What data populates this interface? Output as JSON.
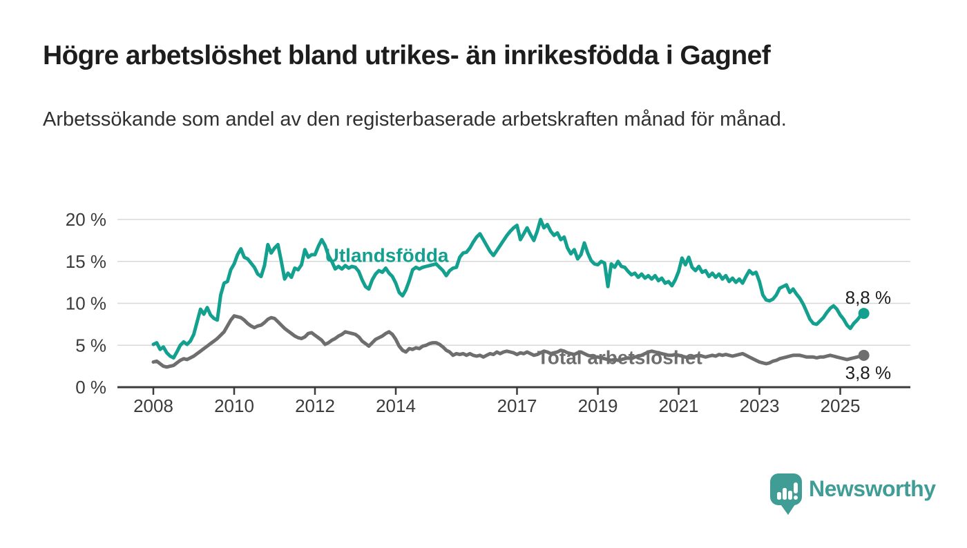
{
  "title": "Högre arbetslöshet bland utrikes- än inrikesfödda i Gagnef",
  "subtitle": "Arbetssökande som andel av den registerbaserade arbetskraften månad för månad.",
  "branding": {
    "name": "Newsworthy"
  },
  "colors": {
    "foreign_line": "#14a08f",
    "total_line": "#6e6e6e",
    "grid": "#d8d8d8",
    "axis": "#3b3b3b",
    "tick_text": "#3b3b3b",
    "end_label_text": "#1d1d1d",
    "logo": "#3f9d96"
  },
  "chart_data": {
    "type": "line",
    "title": "Högre arbetslöshet bland utrikes- än inrikesfödda i Gagnef",
    "subtitle": "Arbetssökande som andel av den registerbaserade arbetskraften månad för månad.",
    "frequency": "monthly",
    "x_start_year": 2008,
    "x_start_month": 1,
    "x_end_year": 2025,
    "x_end_month": 8,
    "x_tick_years": [
      2008,
      2010,
      2012,
      2014,
      2017,
      2019,
      2021,
      2023,
      2025
    ],
    "y_ticks": [
      0,
      5,
      10,
      15,
      20
    ],
    "y_unit": " %",
    "ylim": [
      0,
      21
    ],
    "grid": "horizontal",
    "legend_position": "inline",
    "series": [
      {
        "name": "Utlandsfödda",
        "color": "#14a08f",
        "end_label": "8,8 %",
        "end_value": 8.8,
        "end_label_position": "above",
        "label_at": {
          "year": 2012.25,
          "value": 14.95
        },
        "values": [
          5.1,
          5.3,
          4.5,
          4.8,
          4.1,
          3.7,
          3.5,
          4.2,
          5.0,
          5.4,
          5.1,
          5.5,
          6.3,
          7.8,
          9.3,
          8.7,
          9.5,
          8.6,
          8.2,
          8.0,
          11.0,
          12.4,
          12.6,
          14.0,
          14.7,
          15.8,
          16.5,
          15.5,
          15.3,
          14.8,
          14.3,
          13.5,
          13.2,
          14.5,
          17.0,
          16.0,
          16.6,
          17.0,
          15.0,
          12.9,
          13.6,
          13.1,
          14.2,
          14.0,
          14.6,
          16.4,
          15.5,
          15.8,
          15.8,
          16.8,
          17.6,
          16.9,
          15.7,
          15.0,
          14.1,
          14.4,
          14.1,
          14.5,
          14.2,
          14.4,
          14.3,
          13.8,
          12.8,
          12.0,
          11.7,
          12.8,
          13.5,
          13.9,
          13.7,
          14.2,
          13.6,
          13.2,
          12.4,
          11.3,
          10.9,
          11.6,
          12.7,
          14.0,
          14.3,
          14.1,
          14.3,
          14.4,
          14.5,
          14.6,
          14.7,
          14.3,
          13.9,
          13.3,
          13.9,
          14.2,
          14.3,
          15.5,
          16.0,
          16.1,
          16.6,
          17.3,
          17.9,
          18.3,
          17.6,
          16.9,
          16.2,
          15.7,
          16.3,
          16.9,
          17.5,
          18.1,
          18.6,
          19.0,
          19.3,
          17.6,
          18.3,
          19.0,
          18.2,
          17.5,
          18.6,
          20.0,
          19.0,
          19.4,
          18.6,
          18.1,
          18.4,
          17.6,
          17.9,
          16.6,
          15.9,
          16.4,
          15.3,
          15.8,
          17.2,
          16.0,
          15.1,
          14.7,
          14.6,
          15.0,
          14.8,
          12.0,
          14.7,
          14.3,
          15.0,
          14.4,
          14.3,
          13.8,
          13.4,
          13.6,
          13.1,
          13.5,
          13.0,
          13.3,
          12.9,
          13.3,
          12.7,
          13.0,
          12.4,
          12.6,
          12.1,
          12.8,
          13.8,
          15.4,
          14.6,
          15.5,
          14.3,
          13.9,
          14.4,
          13.7,
          13.9,
          13.2,
          13.6,
          13.1,
          13.5,
          12.9,
          13.3,
          12.6,
          13.0,
          12.5,
          12.9,
          12.4,
          13.2,
          13.9,
          13.5,
          13.7,
          12.6,
          11.0,
          10.4,
          10.3,
          10.5,
          11.0,
          11.8,
          12.0,
          12.2,
          11.3,
          11.7,
          11.1,
          10.6,
          9.9,
          9.0,
          8.1,
          7.6,
          7.5,
          7.9,
          8.3,
          8.9,
          9.4,
          9.7,
          9.3,
          8.6,
          8.1,
          7.4,
          7.0,
          7.6,
          8.0,
          8.5,
          8.8
        ]
      },
      {
        "name": "Total arbetslöshet",
        "color": "#6e6e6e",
        "end_label": "3,8 %",
        "end_value": 3.8,
        "end_label_position": "below",
        "label_at": {
          "year": 2017.5,
          "value": 2.75
        },
        "values": [
          3.0,
          3.1,
          2.8,
          2.5,
          2.4,
          2.5,
          2.6,
          2.9,
          3.2,
          3.4,
          3.3,
          3.5,
          3.7,
          4.0,
          4.3,
          4.6,
          4.9,
          5.2,
          5.5,
          5.8,
          6.2,
          6.6,
          7.3,
          8.0,
          8.5,
          8.4,
          8.3,
          8.0,
          7.6,
          7.3,
          7.1,
          7.3,
          7.4,
          7.7,
          8.1,
          8.3,
          8.2,
          7.8,
          7.4,
          7.0,
          6.7,
          6.4,
          6.1,
          5.9,
          5.8,
          6.0,
          6.4,
          6.5,
          6.2,
          5.9,
          5.6,
          5.1,
          5.3,
          5.6,
          5.8,
          6.1,
          6.3,
          6.6,
          6.5,
          6.4,
          6.3,
          6.0,
          5.5,
          5.2,
          4.9,
          5.3,
          5.7,
          5.9,
          6.1,
          6.4,
          6.6,
          6.3,
          5.7,
          4.9,
          4.4,
          4.2,
          4.6,
          4.5,
          4.7,
          4.6,
          4.9,
          5.0,
          5.2,
          5.3,
          5.3,
          5.1,
          4.8,
          4.4,
          4.2,
          3.8,
          4.0,
          3.9,
          4.0,
          3.8,
          4.0,
          3.8,
          3.7,
          3.8,
          3.6,
          3.8,
          4.0,
          3.9,
          4.2,
          4.0,
          4.2,
          4.3,
          4.2,
          4.1,
          3.9,
          4.1,
          4.0,
          4.2,
          4.0,
          3.8,
          3.9,
          4.1,
          4.3,
          4.2,
          4.0,
          4.1,
          4.2,
          4.4,
          4.3,
          4.1,
          4.0,
          3.9,
          4.1,
          4.2,
          4.0,
          3.8,
          3.7,
          3.6,
          3.6,
          3.5,
          3.4,
          3.3,
          3.2,
          3.3,
          3.2,
          3.3,
          3.4,
          3.5,
          3.4,
          3.6,
          3.7,
          3.8,
          4.0,
          4.2,
          4.3,
          4.2,
          4.1,
          4.0,
          3.9,
          3.8,
          3.8,
          3.9,
          3.8,
          3.7,
          3.6,
          3.5,
          3.6,
          3.7,
          3.8,
          3.7,
          3.6,
          3.7,
          3.8,
          3.7,
          3.9,
          3.8,
          3.9,
          3.8,
          3.7,
          3.8,
          3.9,
          4.0,
          3.8,
          3.6,
          3.4,
          3.2,
          3.0,
          2.9,
          2.8,
          2.9,
          3.1,
          3.2,
          3.4,
          3.5,
          3.6,
          3.7,
          3.8,
          3.8,
          3.8,
          3.7,
          3.6,
          3.6,
          3.6,
          3.5,
          3.6,
          3.6,
          3.7,
          3.8,
          3.7,
          3.6,
          3.5,
          3.4,
          3.3,
          3.4,
          3.5,
          3.6,
          3.7,
          3.8
        ]
      }
    ]
  }
}
